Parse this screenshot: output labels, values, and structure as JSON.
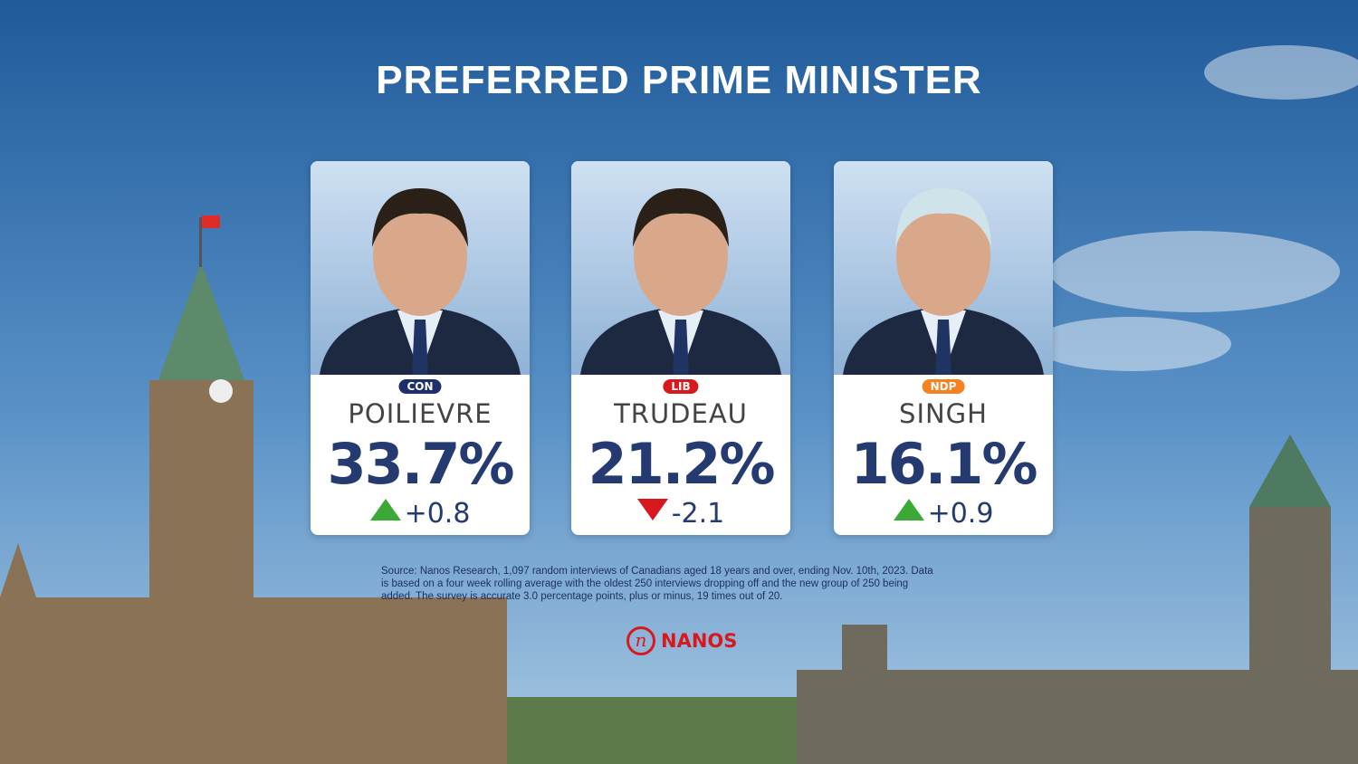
{
  "header": {
    "title": "PREFERRED PRIME MINISTER"
  },
  "candidates": [
    {
      "party": "CON",
      "party_color": "#1f2f6e",
      "name": "POILIEVRE",
      "share": "33.7%",
      "change": "+0.8",
      "trend": "up"
    },
    {
      "party": "LIB",
      "party_color": "#d7191f",
      "name": "TRUDEAU",
      "share": "21.2%",
      "change": "-2.1",
      "trend": "down"
    },
    {
      "party": "NDP",
      "party_color": "#f7811f",
      "name": "SINGH",
      "share": "16.1%",
      "change": "+0.9",
      "trend": "up"
    }
  ],
  "source": {
    "lines": [
      "Source: Nanos Research, 1,097 random interviews of Canadians aged 18 years and over, ending Nov. 10th, 2023. Data",
      "is based on a four week rolling average with the oldest 250 interviews dropping off and the new group of 250 being",
      "added. The survey is accurate 3.0 percentage points, plus or minus, 19 times out of 20."
    ]
  },
  "logo": {
    "text": "NANOS"
  }
}
